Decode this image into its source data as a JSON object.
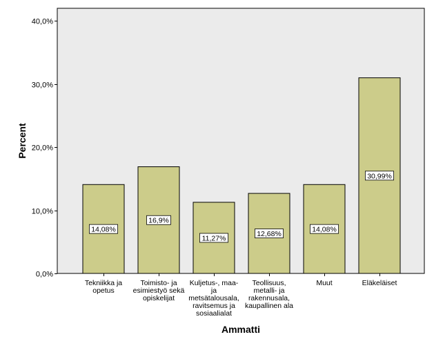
{
  "colors": {
    "bar_fill": "#cccc8a",
    "bar_stroke": "#000000",
    "plot_background": "#ebebeb",
    "label_box": "#ffffff"
  },
  "chart_data": {
    "type": "bar",
    "categories": [
      "Tekniikka ja opetus",
      "Toimisto- ja esimiestyö sekä opiskelijat",
      "Kuljetus-, maa- ja metsätalousala, ravitsemus ja sosiaalialat",
      "Teollisuus, metalli- ja rakennusala, kaupallinen ala",
      "Muut",
      "Eläkeläiset"
    ],
    "category_lines": [
      [
        "Tekniikka ja",
        "opetus"
      ],
      [
        "Toimisto- ja",
        "esimiestyö sekä",
        "opiskelijat"
      ],
      [
        "Kuljetus-, maa-",
        "ja",
        "metsätalousala,",
        "ravitsemus ja",
        "sosiaalialat"
      ],
      [
        "Teollisuus,",
        "metalli- ja",
        "rakennusala,",
        "kaupallinen ala"
      ],
      [
        "Muut"
      ],
      [
        "Eläkeläiset"
      ]
    ],
    "values": [
      14.08,
      16.9,
      11.27,
      12.68,
      14.08,
      30.99
    ],
    "data_labels": [
      "14,08%",
      "16,9%",
      "11,27%",
      "12,68%",
      "14,08%",
      "30,99%"
    ],
    "xlabel": "Ammatti",
    "ylabel": "Percent",
    "ylim": [
      0,
      42
    ],
    "yticks": [
      0,
      10,
      20,
      30,
      40
    ],
    "ytick_labels": [
      "0,0%",
      "10,0%",
      "20,0%",
      "30,0%",
      "40,0%"
    ],
    "grid": false,
    "legend": "none"
  }
}
